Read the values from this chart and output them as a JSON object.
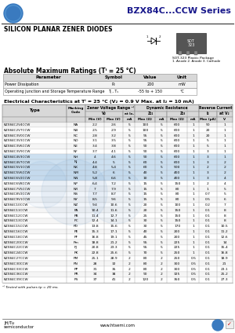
{
  "title": "BZX84C...CCW Series",
  "subtitle": "SILICON PLANAR ZENER DIODES",
  "abs_max_title": "Absolute Maximum Ratings (Tⁱ = 25 °C)",
  "abs_max_headers": [
    "Parameter",
    "Symbol",
    "Value",
    "Unit"
  ],
  "abs_max_rows": [
    [
      "Power Dissipation",
      "P₂",
      "200",
      "mW"
    ],
    [
      "Operating Junction and Storage Temperature Range",
      "Tⱼ , Tₛ",
      "-55 to + 150",
      "°C"
    ]
  ],
  "elec_title": "Electrical Characteristics at Tⁱ = 25 °C (V₂ = 0.9 V Max. at I₂ = 10 mA)",
  "elec_note": "¹⁽ Tested with pulses tp = 20 ms.",
  "table_rows": [
    [
      "BZX84C2V4CCW",
      "NA",
      "2.2",
      "2.6",
      "5",
      "100",
      "5",
      "600",
      "1",
      "50",
      "1"
    ],
    [
      "BZX84C2V7CCW",
      "NB",
      "2.5",
      "2.9",
      "5",
      "100",
      "5",
      "600",
      "1",
      "20",
      "1"
    ],
    [
      "BZX84C3V0CCW",
      "NC",
      "2.8",
      "3.2",
      "5",
      "95",
      "5",
      "600",
      "1",
      "20",
      "1"
    ],
    [
      "BZX84C3V3CCW",
      "ND",
      "3.1",
      "3.5",
      "5",
      "95",
      "5",
      "600",
      "1",
      "5",
      "1"
    ],
    [
      "BZX84C3V6CCW",
      "NE",
      "3.4",
      "3.8",
      "5",
      "90",
      "5",
      "600",
      "1",
      "5",
      "1"
    ],
    [
      "BZX84C3V9CCW",
      "NF",
      "3.7",
      "4.1",
      "5",
      "90",
      "5",
      "600",
      "1",
      "3",
      "1"
    ],
    [
      "BZX84C4V3CCW",
      "NH",
      "4",
      "4.6",
      "5",
      "90",
      "5",
      "600",
      "1",
      "3",
      "1"
    ],
    [
      "BZX84C4V7CCW",
      "NJ",
      "4.4",
      "5",
      "5",
      "60",
      "5",
      "600",
      "1",
      "3",
      "2"
    ],
    [
      "BZX84C5V1CCW",
      "NK",
      "4.8",
      "5.4",
      "5",
      "60",
      "5",
      "500",
      "1",
      "2",
      "2"
    ],
    [
      "BZX84C5V6CCW",
      "NM",
      "5.2",
      "6",
      "5",
      "40",
      "5",
      "400",
      "1",
      "3",
      "2"
    ],
    [
      "BZX84C6V2CCW",
      "NN",
      "5.8",
      "6.6",
      "5",
      "10",
      "5",
      "400",
      "1",
      "3",
      "4"
    ],
    [
      "BZX84C6V8CCW",
      "NP",
      "6.4",
      "7.2",
      "5",
      "15",
      "5",
      "150",
      "1",
      "2",
      "4"
    ],
    [
      "BZX84C7V5CCW",
      "NR",
      "7",
      "7.9",
      "5",
      "15",
      "5",
      "80",
      "1",
      "1",
      "5"
    ],
    [
      "BZX84C8V2CCW",
      "NS",
      "7.7",
      "8.7",
      "5",
      "15",
      "5",
      "80",
      "1",
      "0.7",
      "5"
    ],
    [
      "BZX84C9V1CCW",
      "NY",
      "8.5",
      "9.6",
      "5",
      "15",
      "5",
      "80",
      "1",
      "0.5",
      "6"
    ],
    [
      "BZX84C10CCW",
      "NZ",
      "9.4",
      "10.6",
      "5",
      "20",
      "5",
      "100",
      "1",
      "0.2",
      "7"
    ],
    [
      "BZX84C11CCW",
      "PA",
      "10.4",
      "11.6",
      "5",
      "20",
      "5",
      "150",
      "1",
      "0.1",
      "8"
    ],
    [
      "BZX84C12CCW",
      "PB",
      "11.4",
      "12.7",
      "5",
      "25",
      "5",
      "150",
      "1",
      "0.1",
      "8"
    ],
    [
      "BZX84C13CCW",
      "PC",
      "12.4",
      "14.1",
      "5",
      "30",
      "5",
      "150",
      "1",
      "0.1",
      "8"
    ],
    [
      "BZX84C15CCW",
      "PD",
      "13.8",
      "15.6",
      "5",
      "30",
      "5",
      "170",
      "1",
      "0.1",
      "10.5"
    ],
    [
      "BZX84C16CCW",
      "PE",
      "15.3",
      "17.1",
      "5",
      "40",
      "5",
      "200",
      "1",
      "0.1",
      "11.2"
    ],
    [
      "BZX84C18CCW",
      "PF",
      "16.8",
      "19.1",
      "5",
      "45",
      "5",
      "200",
      "1",
      "0.1",
      "12.6"
    ],
    [
      "BZX84C20CCW",
      "Pm",
      "18.8",
      "21.2",
      "5",
      "55",
      "5",
      "225",
      "1",
      "0.1",
      "14"
    ],
    [
      "BZX84C22CCW",
      "PJ",
      "20.8",
      "23.3",
      "5",
      "55",
      "5",
      "225",
      "1",
      "0.1",
      "15.4"
    ],
    [
      "BZX84C24CCW",
      "PK",
      "22.8",
      "25.6",
      "5",
      "70",
      "5",
      "250",
      "1",
      "0.1",
      "16.8"
    ],
    [
      "BZX84C27CCW",
      "PM",
      "25.1",
      "28.9",
      "2",
      "80",
      "2",
      "250",
      "0.5",
      "0.1",
      "18.9"
    ],
    [
      "BZX84C30CCW",
      "PN",
      "28",
      "32",
      "2",
      "80",
      "2",
      "300",
      "0.5",
      "0.1",
      "21"
    ],
    [
      "BZX84C33CCW",
      "PP",
      "31",
      "35",
      "2",
      "80",
      "2",
      "300",
      "0.5",
      "0.1",
      "23.1"
    ],
    [
      "BZX84C36CCW",
      "PR",
      "34",
      "38",
      "2",
      "90",
      "2",
      "325",
      "0.5",
      "0.1",
      "25.2"
    ],
    [
      "BZX84C39CCW",
      "PS",
      "37",
      "41",
      "2",
      "120",
      "2",
      "350",
      "0.5",
      "0.1",
      "27.3"
    ]
  ],
  "footer_left1": "JH/Tu",
  "footer_left2": "semiconductor",
  "footer_center": "www.htsemi.com",
  "bg_color": "#ffffff",
  "header_bg": "#d8d8d8",
  "blue_circle_color": "#3a7abf",
  "highlight_rows": [
    6,
    7,
    8,
    9,
    10
  ],
  "col_widths_raw": [
    44,
    13,
    13,
    13,
    8,
    14,
    8,
    14,
    8,
    12,
    11
  ]
}
